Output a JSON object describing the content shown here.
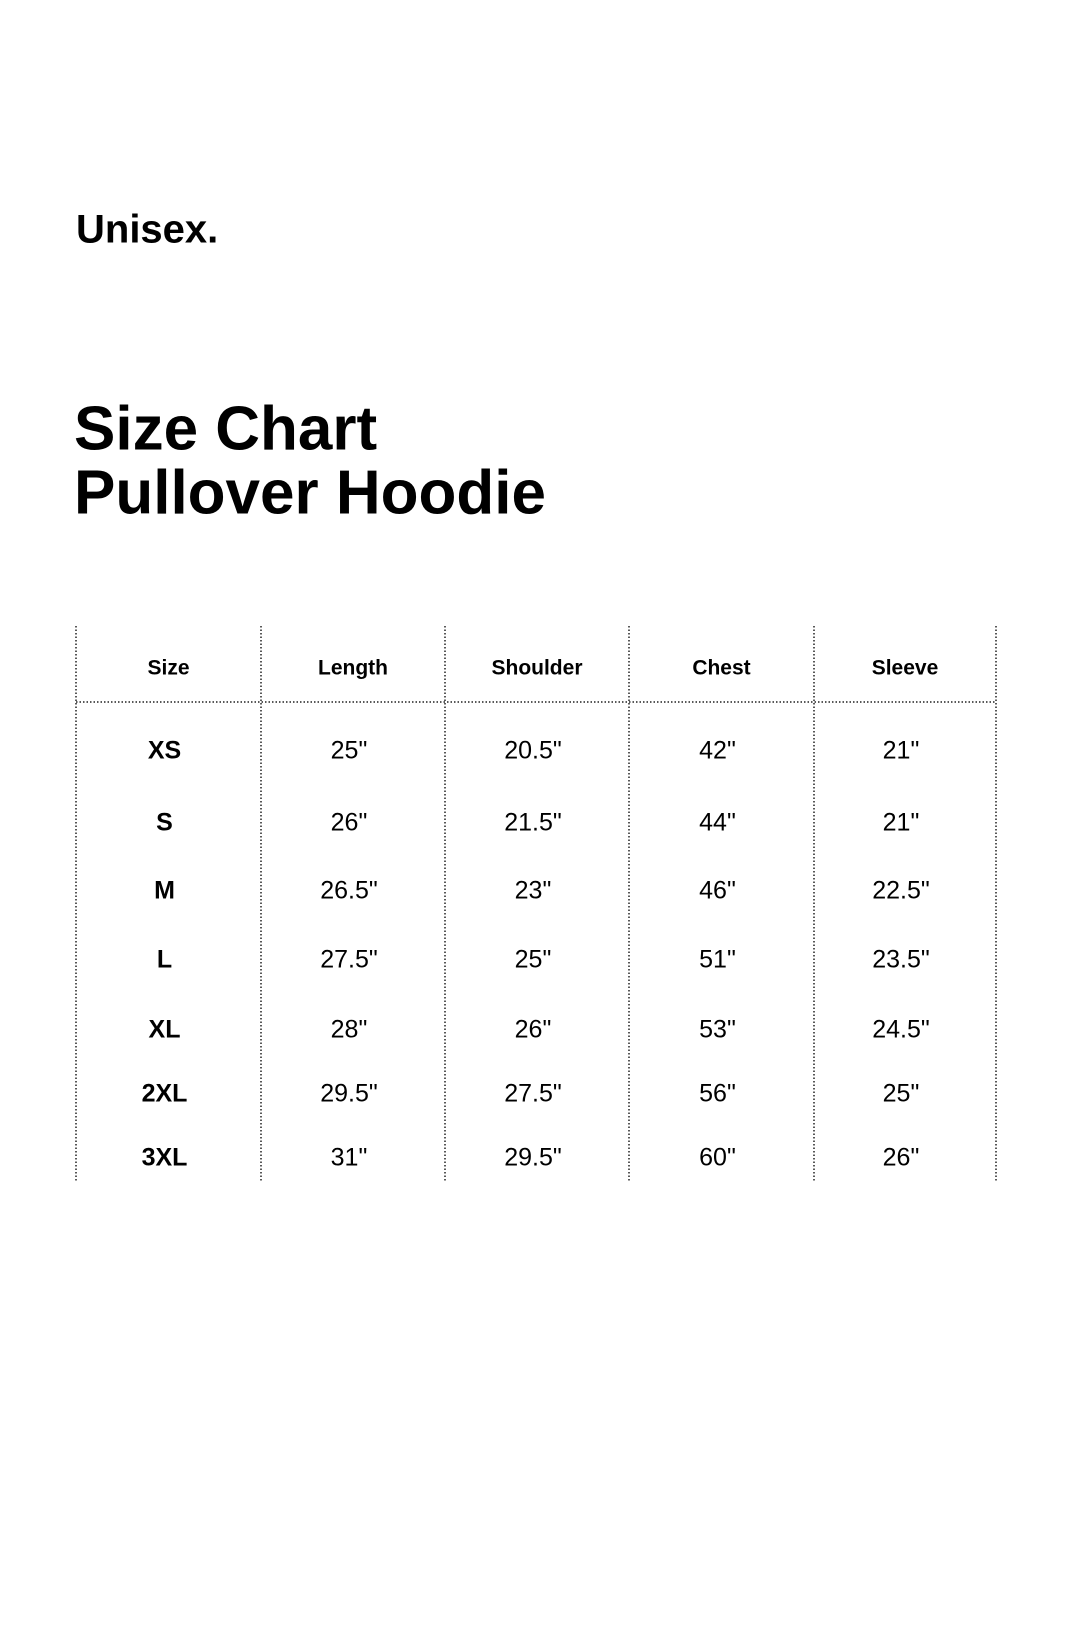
{
  "header": {
    "subtitle": "Unisex.",
    "title": [
      "Size Chart",
      "Pullover Hoodie"
    ]
  },
  "table": {
    "columns": [
      "Size",
      "Length",
      "Shoulder",
      "Chest",
      "Sleeve"
    ],
    "rows": [
      [
        "XS",
        "25\"",
        "20.5\"",
        "42\"",
        "21\""
      ],
      [
        "S",
        "26\"",
        "21.5\"",
        "44\"",
        "21\""
      ],
      [
        "M",
        "26.5\"",
        "23\"",
        "46\"",
        "22.5\""
      ],
      [
        "L",
        "27.5\"",
        "25\"",
        "51\"",
        "23.5\""
      ],
      [
        "XL",
        "28\"",
        "26\"",
        "53\"",
        "24.5\""
      ],
      [
        "2XL",
        "29.5\"",
        "27.5\"",
        "56\"",
        "25\""
      ],
      [
        "3XL",
        "31\"",
        "29.5\"",
        "60\"",
        "26\""
      ]
    ]
  }
}
